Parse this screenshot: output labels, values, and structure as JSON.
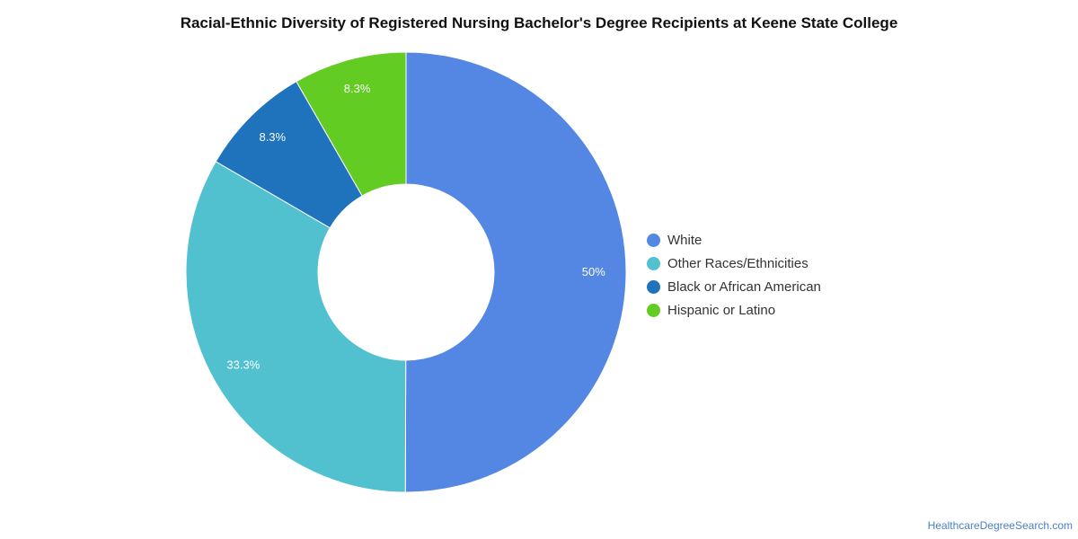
{
  "chart_data": {
    "type": "pie",
    "title": "Racial-Ethnic Diversity of Registered Nursing Bachelor's Degree Recipients at Keene State College",
    "donut": true,
    "legend_position": "right",
    "slices": [
      {
        "label": "White",
        "value": 50,
        "display": "50%",
        "color": "#5486e3"
      },
      {
        "label": "Other Races/Ethnicities",
        "value": 33.3,
        "display": "33.3%",
        "color": "#52c1cf"
      },
      {
        "label": "Black or African American",
        "value": 8.3,
        "display": "8.3%",
        "color": "#1f73bd"
      },
      {
        "label": "Hispanic or Latino",
        "value": 8.3,
        "display": "8.3%",
        "color": "#63cc22"
      }
    ]
  },
  "source": "HealthcareDegreeSearch.com"
}
